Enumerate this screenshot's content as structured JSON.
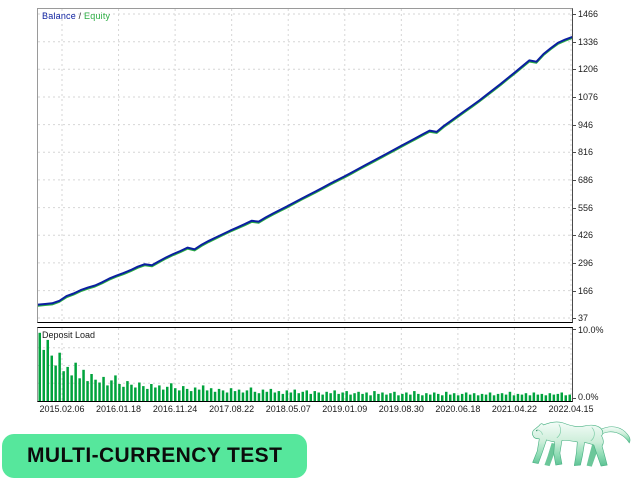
{
  "legend": {
    "balance_label": "Balance",
    "separator": " / ",
    "equity_label": "Equity"
  },
  "sub_panel": {
    "title": "Deposit Load",
    "max_label": "10.0%",
    "min_label": "0.0%"
  },
  "badge": {
    "label": "MULTI-CURRENCY TEST"
  },
  "mascot": {
    "name": "jade-panther-figurine"
  },
  "colors": {
    "balance": "#0b1fa0",
    "equity": "#2aad42",
    "deposit_bar": "#00a33c",
    "grid": "#d6d6d6",
    "axis_text": "#1b1b1b",
    "badge_bg": "#56e79c",
    "badge_text": "#0c0c0c",
    "mascot_jade": "#8edcb4"
  },
  "chart_data": [
    {
      "type": "line",
      "title": "Balance / Equity",
      "ylim": [
        37,
        1466
      ],
      "grid": true,
      "legend_position": "top-left",
      "y_ticks": [
        1466,
        1336,
        1206,
        1076,
        946,
        816,
        686,
        556,
        426,
        296,
        166,
        37
      ],
      "x_tick_labels": [
        "2015.02.06",
        "2016.01.18",
        "2016.11.24",
        "2017.08.22",
        "2018.05.07",
        "2019.01.09",
        "2019.08.30",
        "2020.06.18",
        "2021.04.22",
        "2022.04.15"
      ],
      "series": [
        {
          "name": "Balance",
          "color": "#0b1fa0",
          "values": [
            100,
            103,
            106,
            118,
            140,
            152,
            168,
            180,
            190,
            205,
            222,
            236,
            248,
            262,
            278,
            290,
            285,
            304,
            322,
            338,
            352,
            368,
            360,
            382,
            400,
            416,
            432,
            448,
            463,
            478,
            494,
            490,
            510,
            528,
            545,
            562,
            580,
            598,
            615,
            632,
            650,
            668,
            685,
            702,
            720,
            738,
            756,
            774,
            792,
            810,
            828,
            846,
            864,
            882,
            900,
            918,
            912,
            940,
            964,
            988,
            1012,
            1036,
            1060,
            1086,
            1112,
            1138,
            1165,
            1192,
            1220,
            1248,
            1242,
            1278,
            1305,
            1330,
            1345,
            1358
          ]
        },
        {
          "name": "Equity",
          "color": "#2aad42",
          "values": [
            94,
            97,
            100,
            112,
            134,
            146,
            162,
            174,
            184,
            199,
            216,
            230,
            242,
            256,
            272,
            284,
            279,
            298,
            316,
            332,
            346,
            362,
            354,
            376,
            394,
            410,
            426,
            442,
            457,
            472,
            488,
            484,
            504,
            522,
            539,
            556,
            574,
            592,
            609,
            626,
            644,
            662,
            679,
            696,
            714,
            732,
            750,
            768,
            786,
            804,
            822,
            840,
            858,
            876,
            894,
            912,
            906,
            934,
            958,
            982,
            1006,
            1030,
            1054,
            1080,
            1106,
            1132,
            1159,
            1186,
            1214,
            1242,
            1236,
            1272,
            1299,
            1324,
            1339,
            1352
          ]
        }
      ]
    },
    {
      "type": "bar",
      "title": "Deposit Load",
      "ylim": [
        0,
        10
      ],
      "y_tick_labels": [
        "10.0%",
        "0.0%"
      ],
      "color": "#00a33c",
      "values": [
        9.6,
        7.2,
        8.6,
        6.4,
        5.0,
        6.8,
        4.2,
        4.8,
        3.6,
        5.4,
        3.2,
        4.4,
        2.8,
        3.8,
        3.0,
        2.6,
        3.4,
        2.2,
        2.9,
        3.6,
        2.4,
        2.0,
        2.8,
        2.3,
        1.9,
        2.6,
        2.1,
        1.7,
        2.4,
        1.9,
        2.2,
        1.6,
        2.0,
        2.5,
        1.8,
        1.5,
        2.1,
        1.7,
        1.4,
        1.9,
        1.6,
        2.2,
        1.5,
        1.8,
        1.3,
        1.7,
        1.5,
        1.2,
        1.8,
        1.4,
        1.6,
        1.2,
        1.5,
        1.9,
        1.3,
        1.1,
        1.6,
        1.3,
        1.7,
        1.2,
        1.4,
        1.0,
        1.5,
        1.2,
        1.6,
        1.1,
        1.3,
        1.5,
        1.0,
        1.4,
        1.2,
        0.9,
        1.3,
        1.1,
        1.5,
        1.0,
        1.2,
        1.4,
        0.9,
        1.1,
        1.3,
        1.0,
        1.2,
        0.8,
        1.4,
        1.0,
        1.2,
        0.9,
        1.1,
        1.3,
        0.8,
        1.0,
        1.2,
        0.9,
        1.4,
        1.0,
        0.8,
        1.1,
        0.9,
        1.2,
        1.0,
        0.8,
        1.3,
        0.9,
        1.1,
        0.8,
        1.0,
        1.2,
        0.9,
        1.1,
        0.8,
        1.0,
        0.9,
        1.2,
        0.8,
        1.0,
        1.1,
        0.9,
        1.3,
        0.8,
        1.0,
        0.9,
        1.1,
        0.8,
        1.2,
        0.9,
        1.0,
        0.8,
        1.1,
        0.9,
        1.0,
        1.2,
        0.8,
        0.9
      ]
    }
  ]
}
